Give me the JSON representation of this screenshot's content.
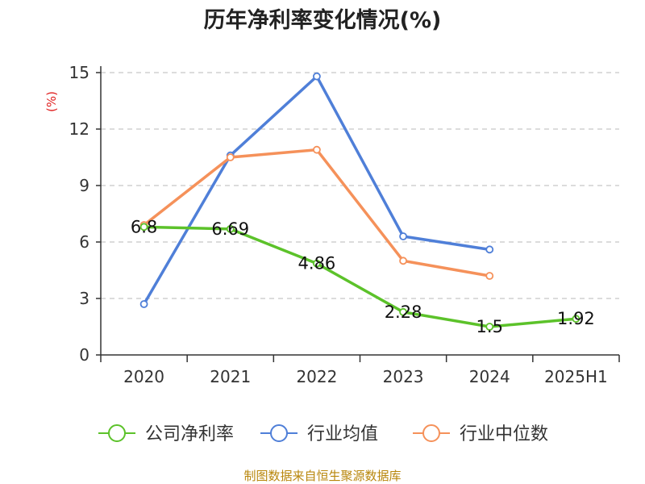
{
  "title": "历年净利率变化情况(%)",
  "source": "制图数据来自恒生聚源数据库",
  "chart_data": {
    "type": "line",
    "title": "历年净利率变化情况(%)",
    "ylabel": "(%)",
    "ylim": [
      0,
      15
    ],
    "yticks": [
      0,
      3,
      6,
      9,
      12,
      15
    ],
    "grid": true,
    "legend_position": "bottom",
    "categories": [
      "2020",
      "2021",
      "2022",
      "2023",
      "2024",
      "2025H1"
    ],
    "series": [
      {
        "name": "公司净利率",
        "color": "#5cc22a",
        "values": [
          6.8,
          6.69,
          4.86,
          2.28,
          1.5,
          1.92
        ],
        "labels": [
          "6.8",
          "6.69",
          "4.86",
          "2.28",
          "1.5",
          "1.92"
        ]
      },
      {
        "name": "行业均值",
        "color": "#4f7fd8",
        "values": [
          2.7,
          10.6,
          14.8,
          6.3,
          5.6,
          null
        ]
      },
      {
        "name": "行业中位数",
        "color": "#f5915a",
        "values": [
          6.9,
          10.5,
          10.9,
          5.0,
          4.2,
          null
        ]
      }
    ]
  }
}
